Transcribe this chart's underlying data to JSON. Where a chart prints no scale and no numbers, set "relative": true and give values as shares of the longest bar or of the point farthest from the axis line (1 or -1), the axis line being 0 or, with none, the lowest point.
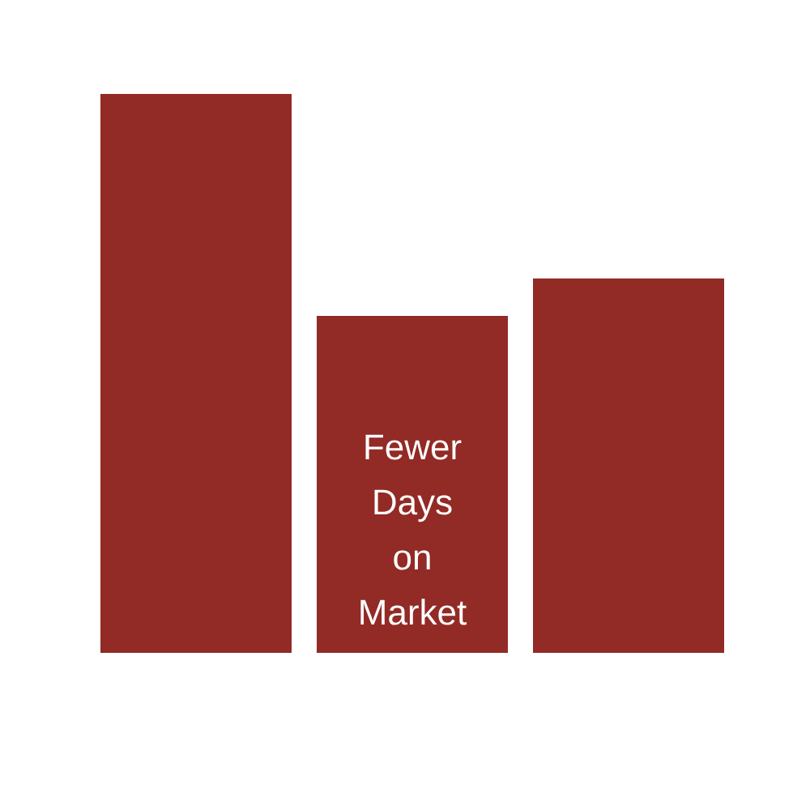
{
  "chart_data": {
    "type": "bar",
    "relative": true,
    "categories": [
      null,
      null,
      null
    ],
    "values": [
      1,
      0.603,
      0.67
    ],
    "color": "#922a26",
    "annotations": [
      "Fewer Days on Market"
    ]
  }
}
